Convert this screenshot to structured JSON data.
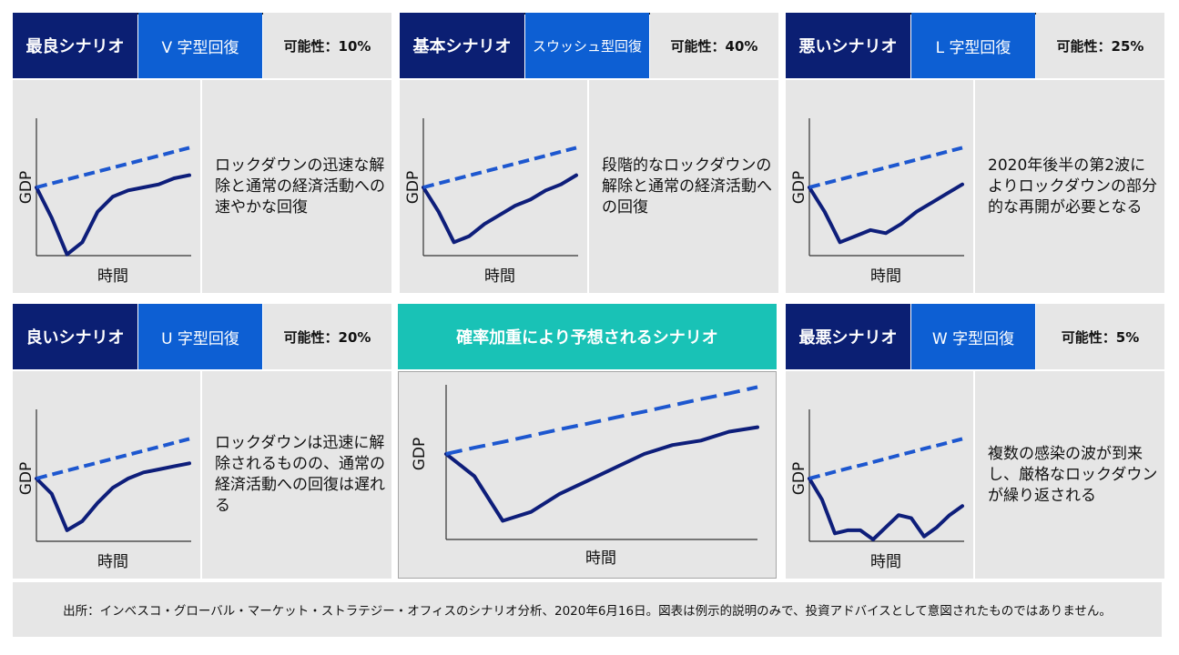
{
  "colors": {
    "navy": "#0b1f73",
    "blue": "#0d5fd3",
    "teal": "#19c2b6",
    "panel_bg": "#e6e6e6",
    "solid_line": "#0e1e7a",
    "dashed_line": "#1d57cf"
  },
  "axes": {
    "y_label": "GDP",
    "x_label": "時間"
  },
  "scenarios": [
    {
      "name": "最良シナリオ",
      "shape": "V 字型回復",
      "probability": "可能性：10%",
      "description": "ロックダウンの迅速な解除と通常の経済活動への速やかな回復",
      "chart_data": {
        "type": "line",
        "series": [
          {
            "name": "GDP",
            "values": [
              100,
              90,
              78,
              82,
              92,
              97,
              99,
              100,
              101,
              103,
              104
            ]
          },
          {
            "name": "trend",
            "style": "dashed",
            "values": [
              100,
              101.3,
              102.6,
              103.9,
              105.2,
              106.5,
              107.8,
              109.1,
              110.4,
              111.7,
              113
            ]
          }
        ]
      }
    },
    {
      "name": "基本シナリオ",
      "shape": "スウッシュ型回復",
      "probability": "可能性：40%",
      "description": "段階的なロックダウンの解除と通常の経済活動への回復",
      "chart_data": {
        "type": "line",
        "series": [
          {
            "name": "GDP",
            "values": [
              100,
              92,
              82,
              84,
              88,
              91,
              94,
              96,
              99,
              101,
              104
            ]
          },
          {
            "name": "trend",
            "style": "dashed",
            "values": [
              100,
              101.3,
              102.6,
              103.9,
              105.2,
              106.5,
              107.8,
              109.1,
              110.4,
              111.7,
              113
            ]
          }
        ]
      }
    },
    {
      "name": "悪いシナリオ",
      "shape": "L 字型回復",
      "probability": "可能性：25%",
      "description": "2020年後半の第2波によりロックダウンの部分的な再開が必要となる",
      "chart_data": {
        "type": "line",
        "series": [
          {
            "name": "GDP",
            "values": [
              100,
              92,
              82,
              84,
              86,
              85,
              88,
              92,
              95,
              98,
              101
            ]
          },
          {
            "name": "trend",
            "style": "dashed",
            "values": [
              100,
              101.3,
              102.6,
              103.9,
              105.2,
              106.5,
              107.8,
              109.1,
              110.4,
              111.7,
              113
            ]
          }
        ]
      }
    },
    {
      "name": "良いシナリオ",
      "shape": "U 字型回復",
      "probability": "可能性：20%",
      "description": "ロックダウンは迅速に解除されるものの、通常の経済活動への回復は遅れる",
      "chart_data": {
        "type": "line",
        "series": [
          {
            "name": "GDP",
            "values": [
              100,
              95,
              83,
              86,
              92,
              97,
              100,
              102,
              103,
              104,
              105
            ]
          },
          {
            "name": "trend",
            "style": "dashed",
            "values": [
              100,
              101.3,
              102.6,
              103.9,
              105.2,
              106.5,
              107.8,
              109.1,
              110.4,
              111.7,
              113
            ]
          }
        ]
      }
    },
    {
      "name": "最悪シナリオ",
      "shape": "W 字型回復",
      "probability": "可能性：5%",
      "description": "複数の感染の波が到来し、厳格なロックダウンが繰り返される",
      "chart_data": {
        "type": "line",
        "series": [
          {
            "name": "GDP",
            "values": [
              100,
              93,
              82,
              83,
              83,
              80,
              84,
              88,
              87,
              81,
              84,
              88,
              91
            ]
          },
          {
            "name": "trend",
            "style": "dashed",
            "values": [
              100,
              101.1,
              102.2,
              103.3,
              104.3,
              105.4,
              106.5,
              107.6,
              108.7,
              109.8,
              110.8,
              111.9,
              113
            ]
          }
        ]
      }
    }
  ],
  "weighted": {
    "title": "確率加重により予想されるシナリオ",
    "chart_data": {
      "type": "line",
      "series": [
        {
          "name": "GDP",
          "values": [
            100,
            95,
            85,
            87,
            91,
            94,
            97,
            100,
            102,
            103,
            105,
            106
          ]
        },
        {
          "name": "trend",
          "style": "dashed",
          "values": [
            100,
            101.4,
            102.7,
            104.1,
            105.5,
            106.8,
            108.2,
            109.5,
            110.9,
            112.3,
            113.6,
            115
          ]
        }
      ]
    }
  },
  "footer": "出所：インベスコ・グローバル・マーケット・ストラテジー・オフィスのシナリオ分析、2020年6月16日。図表は例示的説明のみで、投資アドバイスとして意図されたものではありません。"
}
